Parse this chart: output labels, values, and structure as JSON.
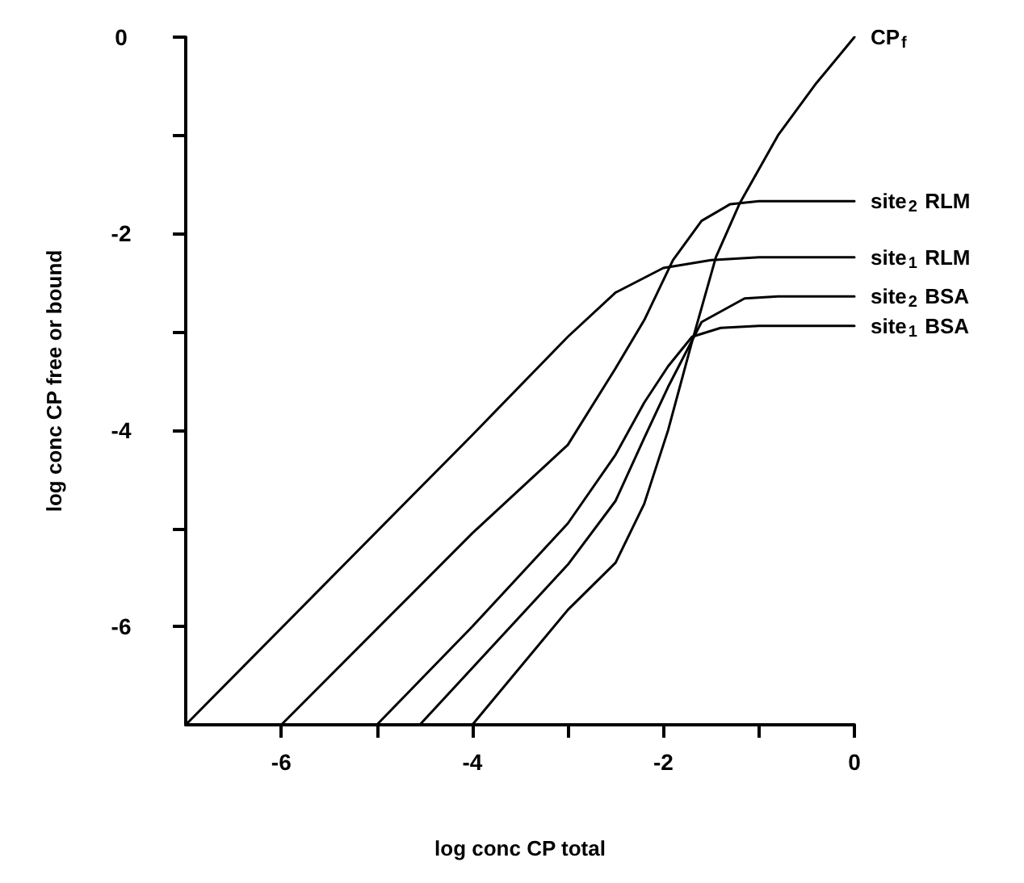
{
  "chart_data": {
    "type": "line",
    "xlabel": "log conc CP total",
    "ylabel": "log conc CP free or bound",
    "xlim": [
      -7,
      0
    ],
    "ylim": [
      -7,
      0
    ],
    "xticks": [
      {
        "value": -6,
        "label": "-6"
      },
      {
        "value": -5,
        "label": null
      },
      {
        "value": -4,
        "label": "-4"
      },
      {
        "value": -3,
        "label": null
      },
      {
        "value": -2,
        "label": "-2"
      },
      {
        "value": -1,
        "label": null
      },
      0
    ],
    "yticks": [
      0,
      {
        "value": -1,
        "label": null
      },
      {
        "value": -2,
        "label": "-2"
      },
      {
        "value": -3,
        "label": null
      },
      {
        "value": -4,
        "label": "-4"
      },
      {
        "value": -5,
        "label": null
      },
      {
        "value": -6,
        "label": "-6"
      }
    ],
    "grid": false,
    "legend": "right",
    "marker": "none",
    "line_style": "solid",
    "series": [
      {
        "name": "CP$_{f}$",
        "color": "#000000",
        "x": [
          -4,
          -3,
          -2.5,
          -2.2,
          -1.95,
          -1.7,
          -1.45,
          -1.2,
          -0.8,
          -0.4,
          0
        ],
        "values": [
          -7,
          -5.83,
          -5.35,
          -4.75,
          -4.0,
          -3.1,
          -2.24,
          -1.69,
          -1.0,
          -0.47,
          0
        ]
      },
      {
        "name": "site$_{2}$ RLM",
        "color": "#000000",
        "x": [
          -6,
          -4,
          -3,
          -2.5,
          -2.2,
          -1.9,
          -1.6,
          -1.3,
          -1,
          0
        ],
        "values": [
          -7,
          -5.05,
          -4.15,
          -3.37,
          -2.88,
          -2.27,
          -1.87,
          -1.7,
          -1.67,
          -1.67
        ]
      },
      {
        "name": "site$_{1}$ RLM",
        "color": "#000000",
        "x": [
          -7,
          -4,
          -3,
          -2.5,
          -2,
          -1.5,
          -1,
          0
        ],
        "values": [
          -7,
          -4.05,
          -3.05,
          -2.6,
          -2.35,
          -2.27,
          -2.24,
          -2.24
        ]
      },
      {
        "name": "site$_{2}$ BSA",
        "color": "#000000",
        "x": [
          -4.55,
          -3,
          -2.5,
          -2.2,
          -1.95,
          -1.6,
          -1.15,
          -0.8,
          0
        ],
        "values": [
          -7,
          -5.37,
          -4.72,
          -4.08,
          -3.56,
          -2.9,
          -2.66,
          -2.64,
          -2.64
        ]
      },
      {
        "name": "site$_{1}$ BSA",
        "color": "#000000",
        "x": [
          -5,
          -4,
          -3,
          -2.5,
          -2.2,
          -1.95,
          -1.7,
          -1.4,
          -1,
          0
        ],
        "values": [
          -7,
          -6.0,
          -4.95,
          -4.25,
          -3.72,
          -3.35,
          -3.05,
          -2.96,
          -2.94,
          -2.94
        ]
      }
    ]
  }
}
